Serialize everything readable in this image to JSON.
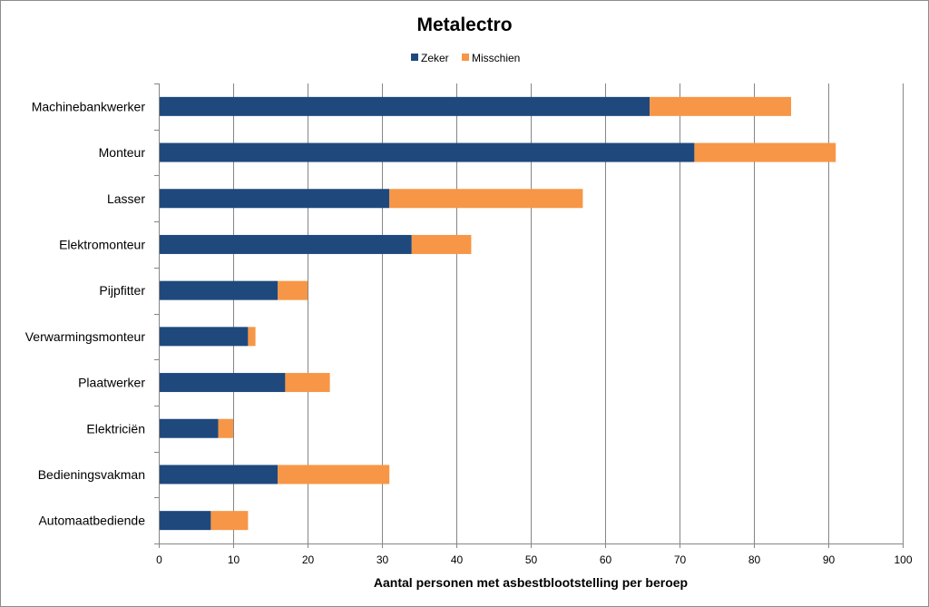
{
  "chart_data": {
    "type": "bar",
    "orientation": "horizontal",
    "stacked": true,
    "title": "Metalectro",
    "xlabel": "Aantal personen met asbestblootstelling per beroep",
    "ylabel": "",
    "xlim": [
      0,
      100
    ],
    "xticks": [
      "0",
      "10",
      "20",
      "30",
      "40",
      "50",
      "60",
      "70",
      "80",
      "90",
      "100"
    ],
    "grid": true,
    "legend_position": "top",
    "categories": [
      "Machinebankwerker",
      "Monteur",
      "Lasser",
      "Elektromonteur",
      "Pijpfitter",
      "Verwarmingsmonteur",
      "Plaatwerker",
      "Elektriciën",
      "Bedieningsvakman",
      "Automaatbediende"
    ],
    "series": [
      {
        "name": "Zeker",
        "color": "#1f497d",
        "values": [
          66,
          72,
          31,
          34,
          16,
          12,
          17,
          8,
          16,
          7
        ]
      },
      {
        "name": "Misschien",
        "color": "#f79646",
        "values": [
          19,
          19,
          26,
          8,
          4,
          1,
          6,
          2,
          15,
          5
        ]
      }
    ]
  }
}
